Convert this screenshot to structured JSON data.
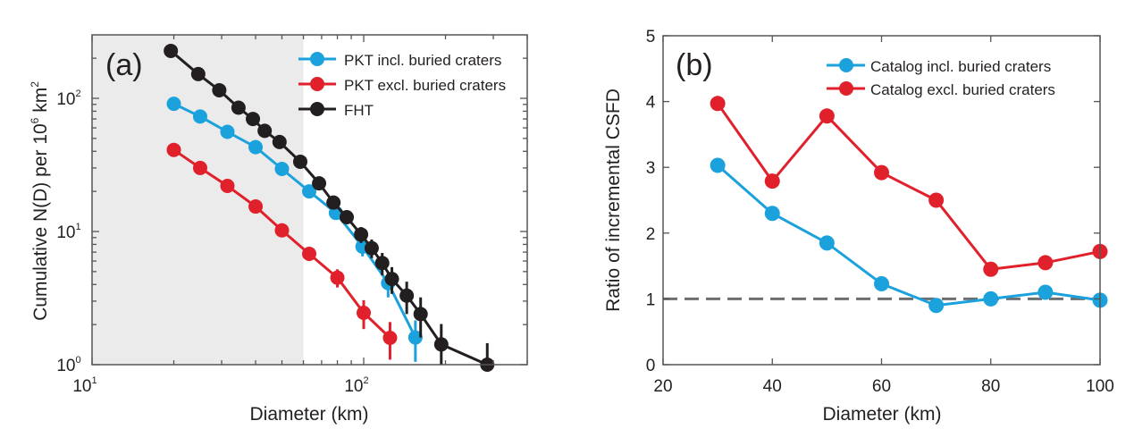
{
  "chart_data": [
    {
      "panel_label": "(a)",
      "type": "line",
      "xscale": "log",
      "yscale": "log",
      "xlabel": "Diameter (km)",
      "ylabel": "Cumulative N(D) per 10^6 km^2",
      "ylabel_parts": {
        "main": "Cumulative N(D) per 10",
        "exp1": "6",
        "unit": " km",
        "exp2": "2"
      },
      "xlim": [
        10,
        400
      ],
      "ylim": [
        1,
        280
      ],
      "xticks": [
        {
          "value": 10,
          "base": "10",
          "exp": "1"
        },
        {
          "value": 100,
          "base": "10",
          "exp": "2"
        }
      ],
      "yticks": [
        {
          "value": 1,
          "base": "10",
          "exp": "0"
        },
        {
          "value": 10,
          "base": "10",
          "exp": "1"
        },
        {
          "value": 100,
          "base": "10",
          "exp": "2"
        }
      ],
      "shaded_region": {
        "x": [
          10,
          60
        ],
        "color": "#ebebeb"
      },
      "legend_position": "top-right",
      "series": [
        {
          "name": "PKT incl. buried craters",
          "color": "#1ba1dc",
          "x": [
            20,
            25,
            31.5,
            40,
            50,
            63,
            79,
            99,
            123,
            155
          ],
          "y": [
            91,
            73,
            56,
            43,
            29.5,
            20,
            13.8,
            7.7,
            4.1,
            1.6
          ],
          "yerr": [
            0,
            0,
            0,
            0,
            0,
            0,
            0.8,
            1.2,
            0.9,
            0.55
          ]
        },
        {
          "name": "PKT excl. buried craters",
          "color": "#e0212b",
          "x": [
            20,
            25,
            31.5,
            40,
            50,
            63,
            80,
            100,
            125
          ],
          "y": [
            41,
            30,
            22,
            15.4,
            10.2,
            6.8,
            4.5,
            2.45,
            1.59
          ],
          "yerr": [
            0,
            0,
            0,
            0,
            0,
            0.8,
            0.7,
            0.6,
            0.5
          ]
        },
        {
          "name": "FHT",
          "color": "#231f20",
          "x": [
            19.5,
            24.6,
            29.4,
            34.6,
            39.1,
            43.2,
            49,
            58.4,
            68.5,
            77.4,
            86.6,
            97.8,
            107,
            117,
            127,
            144,
            162,
            193,
            285
          ],
          "y": [
            227,
            152,
            115,
            85,
            70,
            57,
            47,
            33.4,
            23,
            16.5,
            12.8,
            9.5,
            7.5,
            5.8,
            4.4,
            3.3,
            2.4,
            1.42,
            1.0
          ],
          "yerr": [
            0,
            0,
            0,
            0,
            0,
            0,
            0,
            0,
            0,
            0,
            1.2,
            1.3,
            1.2,
            1.1,
            1.0,
            0.9,
            0.8,
            0.6,
            0.45
          ]
        }
      ]
    },
    {
      "panel_label": "(b)",
      "type": "line",
      "xlabel": "Diameter (km)",
      "ylabel": "Ratio of incremental CSFD",
      "xlim": [
        20,
        100
      ],
      "ylim": [
        0,
        5
      ],
      "xticks": [
        20,
        40,
        60,
        80,
        100
      ],
      "yticks": [
        0,
        1,
        2,
        3,
        4,
        5
      ],
      "reference_line": {
        "y": 1,
        "style": "dashed",
        "color": "#6d6e70"
      },
      "legend_position": "top-right",
      "series": [
        {
          "name": "Catalog incl. buried craters",
          "color": "#1ba1dc",
          "x": [
            30,
            40,
            50,
            60,
            70,
            80,
            90,
            100
          ],
          "y": [
            3.03,
            2.3,
            1.85,
            1.23,
            0.9,
            1.0,
            1.1,
            0.98
          ]
        },
        {
          "name": "Catalog excl. buried craters",
          "color": "#e0212b",
          "x": [
            30,
            40,
            50,
            60,
            70,
            80,
            90,
            100
          ],
          "y": [
            3.97,
            2.79,
            3.78,
            2.92,
            2.5,
            1.45,
            1.55,
            1.72
          ]
        }
      ]
    }
  ]
}
